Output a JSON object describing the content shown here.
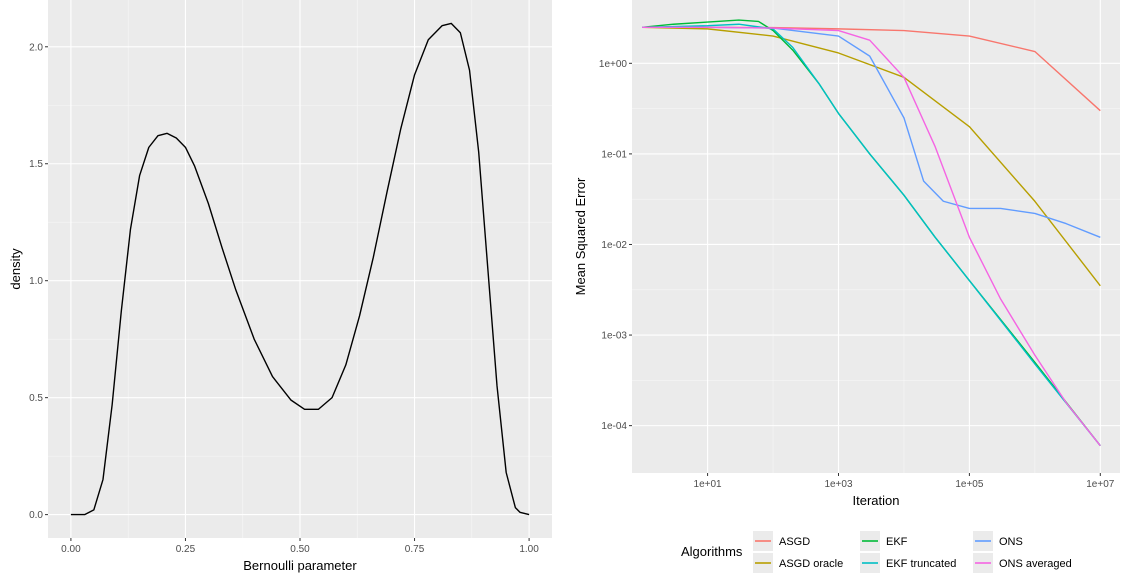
{
  "chart_data": [
    {
      "type": "line",
      "title": "",
      "xlabel": "Bernoulli parameter",
      "ylabel": "density",
      "xlim": [
        -0.05,
        1.05
      ],
      "ylim": [
        -0.1,
        2.2
      ],
      "x_ticks": [
        0.0,
        0.25,
        0.5,
        0.75,
        1.0
      ],
      "x_tick_labels": [
        "0.00",
        "0.25",
        "0.50",
        "0.75",
        "1.00"
      ],
      "y_ticks": [
        0.0,
        0.5,
        1.0,
        1.5,
        2.0
      ],
      "y_tick_labels": [
        "0.0",
        "0.5",
        "1.0",
        "1.5",
        "2.0"
      ],
      "grid": true,
      "series": [
        {
          "color": "#000000",
          "x": [
            0.0,
            0.03,
            0.05,
            0.07,
            0.09,
            0.11,
            0.13,
            0.15,
            0.17,
            0.19,
            0.21,
            0.23,
            0.25,
            0.27,
            0.3,
            0.33,
            0.36,
            0.4,
            0.44,
            0.48,
            0.51,
            0.54,
            0.57,
            0.6,
            0.63,
            0.66,
            0.69,
            0.72,
            0.75,
            0.78,
            0.81,
            0.83,
            0.85,
            0.87,
            0.89,
            0.91,
            0.93,
            0.95,
            0.97,
            0.98,
            1.0
          ],
          "y": [
            0.0,
            0.0,
            0.02,
            0.15,
            0.47,
            0.87,
            1.22,
            1.45,
            1.57,
            1.62,
            1.63,
            1.61,
            1.57,
            1.49,
            1.33,
            1.14,
            0.96,
            0.75,
            0.59,
            0.49,
            0.45,
            0.45,
            0.5,
            0.64,
            0.85,
            1.1,
            1.38,
            1.65,
            1.88,
            2.03,
            2.09,
            2.1,
            2.06,
            1.9,
            1.55,
            1.05,
            0.55,
            0.18,
            0.03,
            0.01,
            0.0
          ]
        }
      ]
    },
    {
      "type": "line",
      "title": "",
      "xlabel": "Iteration",
      "ylabel": "Mean Squared Error",
      "x_scale": "log10",
      "y_scale": "log10",
      "xlim": [
        0.7,
        20000000
      ],
      "ylim": [
        3e-05,
        5
      ],
      "x_ticks": [
        10,
        1000,
        100000,
        10000000
      ],
      "x_tick_labels": [
        "1e+01",
        "1e+03",
        "1e+05",
        "1e+07"
      ],
      "y_ticks": [
        0.0001,
        0.001,
        0.01,
        0.1,
        1
      ],
      "y_tick_labels": [
        "1e-04",
        "1e-03",
        "1e-02",
        "1e-01",
        "1e+00"
      ],
      "grid": true,
      "legend_title": "Algorithms",
      "legend_position": "bottom",
      "series": [
        {
          "name": "ASGD",
          "color": "#F8766D",
          "x": [
            1,
            10,
            100,
            1000,
            10000,
            100000,
            1000000,
            10000000
          ],
          "y": [
            2.5,
            2.5,
            2.48,
            2.4,
            2.3,
            2.0,
            1.35,
            0.3
          ]
        },
        {
          "name": "ASGD oracle",
          "color": "#B79F00",
          "x": [
            1,
            10,
            100,
            1000,
            10000,
            100000,
            1000000,
            10000000
          ],
          "y": [
            2.5,
            2.4,
            2.0,
            1.3,
            0.7,
            0.2,
            0.03,
            0.0035
          ]
        },
        {
          "name": "EKF",
          "color": "#00BA38",
          "x": [
            1,
            3,
            10,
            30,
            60,
            100,
            200,
            500,
            1000,
            3000,
            10000,
            30000,
            100000,
            1000000,
            10000000
          ],
          "y": [
            2.5,
            2.7,
            2.85,
            3.0,
            2.9,
            2.3,
            1.4,
            0.6,
            0.28,
            0.1,
            0.035,
            0.012,
            0.004,
            0.0005,
            6e-05
          ]
        },
        {
          "name": "EKF truncated",
          "color": "#00BFC4",
          "x": [
            1,
            10,
            30,
            100,
            200,
            500,
            1000,
            3000,
            10000,
            30000,
            100000,
            1000000,
            10000000
          ],
          "y": [
            2.5,
            2.6,
            2.7,
            2.4,
            1.5,
            0.6,
            0.28,
            0.1,
            0.035,
            0.012,
            0.004,
            0.00048,
            6e-05
          ]
        },
        {
          "name": "ONS",
          "color": "#619CFF",
          "x": [
            1,
            10,
            100,
            1000,
            3000,
            10000,
            20000,
            40000,
            100000,
            300000,
            1000000,
            3000000,
            10000000
          ],
          "y": [
            2.5,
            2.5,
            2.45,
            2.0,
            1.2,
            0.25,
            0.05,
            0.03,
            0.025,
            0.025,
            0.022,
            0.017,
            0.012
          ]
        },
        {
          "name": "ONS averaged",
          "color": "#F564E3",
          "x": [
            1,
            10,
            100,
            1000,
            3000,
            10000,
            30000,
            100000,
            300000,
            1000000,
            3000000,
            10000000
          ],
          "y": [
            2.5,
            2.5,
            2.45,
            2.3,
            1.8,
            0.7,
            0.12,
            0.012,
            0.0025,
            0.0006,
            0.00018,
            6e-05
          ]
        }
      ]
    }
  ]
}
